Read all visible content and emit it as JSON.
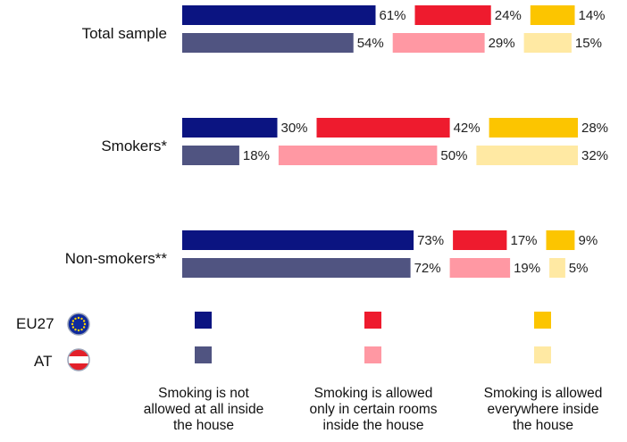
{
  "chart_data": {
    "type": "bar",
    "orientation": "horizontal-stacked",
    "categories": [
      "Total sample",
      "Smokers*",
      "Non-smokers**"
    ],
    "value_suffix": "%",
    "series": [
      {
        "region": "EU27",
        "values": [
          [
            61,
            24,
            14
          ],
          [
            30,
            42,
            28
          ],
          [
            73,
            17,
            9
          ]
        ]
      },
      {
        "region": "AT",
        "values": [
          [
            54,
            29,
            15
          ],
          [
            18,
            50,
            32
          ],
          [
            72,
            19,
            5
          ]
        ]
      }
    ],
    "segments": [
      "Smoking is not allowed at all inside the house",
      "Smoking is allowed only in certain rooms inside the house",
      "Smoking is allowed everywhere inside the house"
    ],
    "colors": {
      "EU27": [
        "#0b1481",
        "#ee1b2e",
        "#fcc500"
      ],
      "AT": [
        "#505481",
        "#ff98a3",
        "#ffe9a3"
      ]
    }
  },
  "legend": {
    "regions": [
      "EU27",
      "AT"
    ],
    "labels": [
      [
        "Smoking is not",
        "allowed at all inside",
        "the house"
      ],
      [
        "Smoking is allowed",
        "only in certain rooms",
        "inside the house"
      ],
      [
        "Smoking is allowed",
        "everywhere inside",
        "the house"
      ]
    ]
  }
}
